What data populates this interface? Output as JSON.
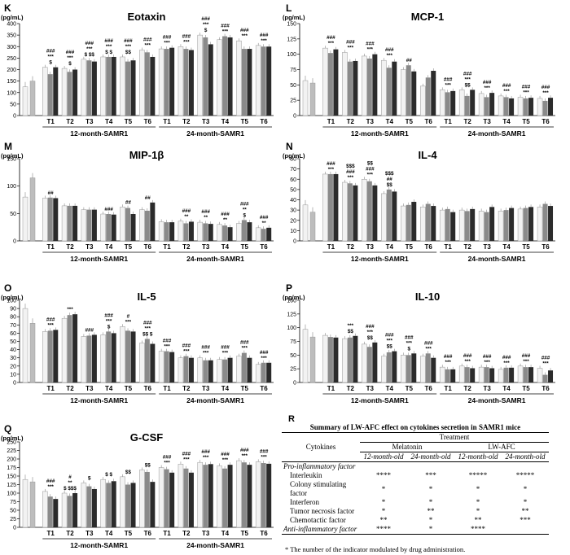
{
  "colors": [
    "#f2f2f2",
    "#bdbdbd",
    "#8a8a8a",
    "#2b2b2b"
  ],
  "xgroups": [
    "T1",
    "T2",
    "T3",
    "T4",
    "T5",
    "T6"
  ],
  "group_labels": [
    "12-month-SAMR1",
    "24-month-SAMR1"
  ],
  "chart_data": [
    {
      "letter": "K",
      "title": "Eotaxin",
      "unit": "(pg/mL)",
      "type": "bar",
      "ylim": [
        0,
        400
      ],
      "ticks": [
        0,
        50,
        100,
        150,
        200,
        250,
        300,
        350,
        400
      ],
      "controls": [
        125,
        150
      ],
      "groups": [
        {
          "values": [
            210,
            180,
            210
          ],
          "labels": [
            "###",
            "***",
            "$"
          ]
        },
        {
          "values": [
            205,
            190,
            200
          ],
          "labels": [
            "###",
            "***",
            "$"
          ]
        },
        {
          "values": [
            245,
            240,
            235
          ],
          "labels": [
            "###",
            "***",
            "$ $$"
          ]
        },
        {
          "values": [
            255,
            255,
            255
          ],
          "labels": [
            "###",
            "***",
            "$ $"
          ]
        },
        {
          "values": [
            255,
            235,
            240
          ],
          "labels": [
            "###",
            "***",
            "$$"
          ]
        },
        {
          "values": [
            285,
            275,
            255
          ],
          "labels": [
            "###",
            "***",
            ""
          ]
        },
        {
          "values": [
            290,
            290,
            295
          ],
          "labels": [
            "###",
            "***",
            ""
          ]
        },
        {
          "values": [
            300,
            290,
            285
          ],
          "labels": [
            "###",
            "***",
            ""
          ]
        },
        {
          "values": [
            350,
            340,
            310
          ],
          "labels": [
            "###",
            "***",
            "$"
          ]
        },
        {
          "values": [
            330,
            345,
            340
          ],
          "labels": [
            "###",
            "***",
            ""
          ]
        },
        {
          "values": [
            325,
            290,
            290
          ],
          "labels": [
            "###",
            "***",
            ""
          ]
        },
        {
          "values": [
            305,
            300,
            300
          ],
          "labels": [
            "###",
            "***",
            ""
          ]
        }
      ]
    },
    {
      "letter": "L",
      "title": "MCP-1",
      "unit": "(pg/mL)",
      "type": "bar",
      "ylim": [
        0,
        150
      ],
      "ticks": [
        0,
        25,
        50,
        75,
        100,
        125,
        150
      ],
      "controls": [
        57,
        53
      ],
      "groups": [
        {
          "values": [
            110,
            102,
            108
          ],
          "labels": [
            "###",
            "***",
            ""
          ]
        },
        {
          "values": [
            103,
            88,
            89
          ],
          "labels": [
            "###",
            "***",
            ""
          ]
        },
        {
          "values": [
            97,
            93,
            100
          ],
          "labels": [
            "###",
            "***",
            ""
          ]
        },
        {
          "values": [
            90,
            78,
            88
          ],
          "labels": [
            "###",
            "***",
            ""
          ]
        },
        {
          "values": [
            75,
            82,
            72
          ],
          "labels": [
            "##",
            "",
            ""
          ]
        },
        {
          "values": [
            48,
            62,
            73
          ],
          "labels": [
            "",
            "",
            ""
          ]
        },
        {
          "values": [
            42,
            38,
            40
          ],
          "labels": [
            "###",
            "***",
            ""
          ]
        },
        {
          "values": [
            42,
            32,
            42
          ],
          "labels": [
            "###",
            "***",
            "$$"
          ]
        },
        {
          "values": [
            36,
            30,
            37
          ],
          "labels": [
            "###",
            "***",
            ""
          ]
        },
        {
          "values": [
            32,
            30,
            28
          ],
          "labels": [
            "###",
            "***",
            ""
          ]
        },
        {
          "values": [
            30,
            28,
            29
          ],
          "labels": [
            "###",
            "***",
            ""
          ]
        },
        {
          "values": [
            28,
            24,
            29
          ],
          "labels": [
            "###",
            "***",
            ""
          ]
        }
      ]
    },
    {
      "letter": "M",
      "title": "MIP-1β",
      "unit": "(pg/mL)",
      "type": "bar",
      "ylim": [
        0,
        150
      ],
      "ticks": [
        0,
        50,
        100,
        150
      ],
      "controls": [
        80,
        115
      ],
      "groups": [
        {
          "values": [
            78,
            79,
            78
          ],
          "labels": [
            "##",
            "",
            ""
          ]
        },
        {
          "values": [
            64,
            64,
            64
          ],
          "labels": [
            "",
            "",
            ""
          ]
        },
        {
          "values": [
            57,
            57,
            57
          ],
          "labels": [
            "",
            "",
            ""
          ]
        },
        {
          "values": [
            49,
            49,
            48
          ],
          "labels": [
            "###",
            "",
            ""
          ]
        },
        {
          "values": [
            62,
            60,
            49
          ],
          "labels": [
            "##",
            "",
            ""
          ]
        },
        {
          "values": [
            57,
            55,
            70
          ],
          "labels": [
            "##",
            "",
            ""
          ]
        },
        {
          "values": [
            35,
            34,
            34
          ],
          "labels": [
            "",
            "",
            ""
          ]
        },
        {
          "values": [
            36,
            32,
            35
          ],
          "labels": [
            "###",
            "**",
            ""
          ]
        },
        {
          "values": [
            34,
            32,
            31
          ],
          "labels": [
            "###",
            "**",
            ""
          ]
        },
        {
          "values": [
            30,
            28,
            25
          ],
          "labels": [
            "###",
            "**",
            ""
          ]
        },
        {
          "values": [
            32,
            38,
            34
          ],
          "labels": [
            "###",
            "**",
            "$"
          ]
        },
        {
          "values": [
            24,
            22,
            24
          ],
          "labels": [
            "###",
            "**",
            ""
          ]
        }
      ]
    },
    {
      "letter": "N",
      "title": "IL-4",
      "unit": "(pg/mL)",
      "type": "bar",
      "ylim": [
        0,
        80
      ],
      "ticks": [
        0,
        10,
        20,
        30,
        40,
        50,
        60,
        70,
        80
      ],
      "controls": [
        35,
        28
      ],
      "groups": [
        {
          "values": [
            65,
            65,
            65
          ],
          "labels": [
            "###",
            "***",
            ""
          ]
        },
        {
          "values": [
            57,
            56,
            54
          ],
          "labels": [
            "$$$",
            "###",
            "***"
          ]
        },
        {
          "values": [
            60,
            58,
            54
          ],
          "labels": [
            "$$",
            "###",
            "***"
          ]
        },
        {
          "values": [
            46,
            50,
            48
          ],
          "labels": [
            "$$$",
            "##",
            "$$"
          ]
        },
        {
          "values": [
            34,
            35,
            38
          ],
          "labels": [
            "",
            "",
            ""
          ]
        },
        {
          "values": [
            33,
            36,
            34
          ],
          "labels": [
            "",
            "",
            ""
          ]
        },
        {
          "values": [
            30,
            31,
            28
          ],
          "labels": [
            "",
            "",
            ""
          ]
        },
        {
          "values": [
            30,
            29,
            31
          ],
          "labels": [
            "",
            "",
            ""
          ]
        },
        {
          "values": [
            29,
            28,
            33
          ],
          "labels": [
            "",
            "",
            ""
          ]
        },
        {
          "values": [
            29,
            30,
            32
          ],
          "labels": [
            "",
            "",
            ""
          ]
        },
        {
          "values": [
            31,
            32,
            33
          ],
          "labels": [
            "",
            "",
            ""
          ]
        },
        {
          "values": [
            33,
            36,
            34
          ],
          "labels": [
            "",
            "",
            ""
          ]
        }
      ]
    },
    {
      "letter": "O",
      "title": "IL-5",
      "unit": "(pg/mL)",
      "type": "bar",
      "ylim": [
        0,
        100
      ],
      "ticks": [
        0,
        10,
        20,
        30,
        40,
        50,
        60,
        70,
        80,
        90,
        100
      ],
      "controls": [
        90,
        72
      ],
      "groups": [
        {
          "values": [
            62,
            63,
            64
          ],
          "labels": [
            "###",
            "***",
            ""
          ]
        },
        {
          "values": [
            78,
            82,
            83
          ],
          "labels": [
            "***",
            "",
            ""
          ]
        },
        {
          "values": [
            56,
            57,
            58
          ],
          "labels": [
            "###",
            "",
            ""
          ]
        },
        {
          "values": [
            58,
            62,
            60
          ],
          "labels": [
            "###",
            "***",
            "$"
          ]
        },
        {
          "values": [
            68,
            63,
            62
          ],
          "labels": [
            "#",
            "***",
            ""
          ]
        },
        {
          "values": [
            48,
            53,
            47
          ],
          "labels": [
            "###",
            "***",
            "$$ $"
          ]
        },
        {
          "values": [
            38,
            38,
            37
          ],
          "labels": [
            "###",
            "***",
            ""
          ]
        },
        {
          "values": [
            30,
            32,
            30
          ],
          "labels": [
            "###",
            "***",
            ""
          ]
        },
        {
          "values": [
            30,
            27,
            27
          ],
          "labels": [
            "###",
            "***",
            ""
          ]
        },
        {
          "values": [
            28,
            28,
            30
          ],
          "labels": [
            "###",
            "***",
            ""
          ]
        },
        {
          "values": [
            32,
            36,
            30
          ],
          "labels": [
            "###",
            "***",
            ""
          ]
        },
        {
          "values": [
            22,
            24,
            24
          ],
          "labels": [
            "###",
            "***",
            ""
          ]
        }
      ]
    },
    {
      "letter": "P",
      "title": "IL-10",
      "unit": "(pg/mL)",
      "type": "bar",
      "ylim": [
        0,
        150
      ],
      "ticks": [
        0,
        25,
        50,
        75,
        100,
        125,
        150
      ],
      "controls": [
        97,
        83
      ],
      "groups": [
        {
          "values": [
            86,
            83,
            82
          ],
          "labels": [
            "",
            "",
            ""
          ]
        },
        {
          "values": [
            80,
            82,
            85
          ],
          "labels": [
            "***",
            "$$",
            ""
          ]
        },
        {
          "values": [
            70,
            65,
            73
          ],
          "labels": [
            "###",
            "***",
            "$$"
          ]
        },
        {
          "values": [
            48,
            55,
            57
          ],
          "labels": [
            "###",
            "***",
            "$$"
          ]
        },
        {
          "values": [
            50,
            50,
            53
          ],
          "labels": [
            "###",
            "***",
            "$"
          ]
        },
        {
          "values": [
            48,
            53,
            45
          ],
          "labels": [
            "###",
            "***",
            ""
          ]
        },
        {
          "values": [
            28,
            24,
            24
          ],
          "labels": [
            "###",
            "***",
            ""
          ]
        },
        {
          "values": [
            30,
            28,
            26
          ],
          "labels": [
            "###",
            "***",
            ""
          ]
        },
        {
          "values": [
            28,
            28,
            26
          ],
          "labels": [
            "###",
            "***",
            ""
          ]
        },
        {
          "values": [
            24,
            27,
            27
          ],
          "labels": [
            "###",
            "***",
            ""
          ]
        },
        {
          "values": [
            30,
            28,
            28
          ],
          "labels": [
            "###",
            "***",
            ""
          ]
        },
        {
          "values": [
            26,
            14,
            22
          ],
          "labels": [
            "###",
            "***",
            ""
          ]
        }
      ]
    },
    {
      "letter": "Q",
      "title": "G-CSF",
      "unit": "(pg/mL)",
      "type": "bar",
      "ylim": [
        0,
        250
      ],
      "ticks": [
        0,
        25,
        50,
        75,
        100,
        125,
        150,
        175,
        200,
        225,
        250
      ],
      "controls": [
        140,
        133
      ],
      "groups": [
        {
          "values": [
            105,
            90,
            83
          ],
          "labels": [
            "###",
            "***",
            ""
          ]
        },
        {
          "values": [
            100,
            92,
            100
          ],
          "labels": [
            "#",
            "**",
            "$ $$$"
          ]
        },
        {
          "values": [
            130,
            120,
            112
          ],
          "labels": [
            "",
            "",
            "$"
          ]
        },
        {
          "values": [
            140,
            130,
            135
          ],
          "labels": [
            "",
            "",
            "$ $"
          ]
        },
        {
          "values": [
            148,
            125,
            130
          ],
          "labels": [
            "",
            "",
            "$$"
          ]
        },
        {
          "values": [
            168,
            162,
            133
          ],
          "labels": [
            "",
            "",
            "$$"
          ]
        },
        {
          "values": [
            175,
            170,
            160
          ],
          "labels": [
            "###",
            "***",
            ""
          ]
        },
        {
          "values": [
            185,
            172,
            160
          ],
          "labels": [
            "###",
            "***",
            ""
          ]
        },
        {
          "values": [
            190,
            183,
            185
          ],
          "labels": [
            "###",
            "***",
            ""
          ]
        },
        {
          "values": [
            180,
            172,
            183
          ],
          "labels": [
            "###",
            "***",
            ""
          ]
        },
        {
          "values": [
            195,
            190,
            183
          ],
          "labels": [
            "###",
            "***",
            ""
          ]
        },
        {
          "values": [
            192,
            188,
            186
          ],
          "labels": [
            "###",
            "***",
            ""
          ]
        }
      ]
    }
  ],
  "summary": {
    "letter": "R",
    "title": "Summary of LW-AFC effect on cytokines secretion in SAMR1 mice",
    "treatment_header": "Treatment",
    "cytokines_header": "Cytokines",
    "melatonin": "Melatonin",
    "lwafc": "LW-AFC",
    "age_12": "12-month-old",
    "age_24": "24-month-old",
    "pro_label": "Pro-inflammatory factor",
    "anti_label": "Anti-inflammatory factor",
    "rows": [
      {
        "name": "Interleukin",
        "v": [
          "****",
          "***",
          "*****",
          "*****"
        ]
      },
      {
        "name": "Colony stimulating factor",
        "v": [
          "*",
          "*",
          "*",
          "*"
        ]
      },
      {
        "name": "Interferon",
        "v": [
          "*",
          "*",
          "*",
          "*"
        ]
      },
      {
        "name": "Tumor necrosis factor",
        "v": [
          "*",
          "**",
          "*",
          "**"
        ]
      },
      {
        "name": "Chemotactic factor",
        "v": [
          "**",
          "*",
          "**",
          "***"
        ]
      }
    ],
    "anti_row": {
      "v": [
        "****",
        "*",
        "****",
        ""
      ]
    },
    "note": "* The number of the indicator modulated by drug administration."
  }
}
